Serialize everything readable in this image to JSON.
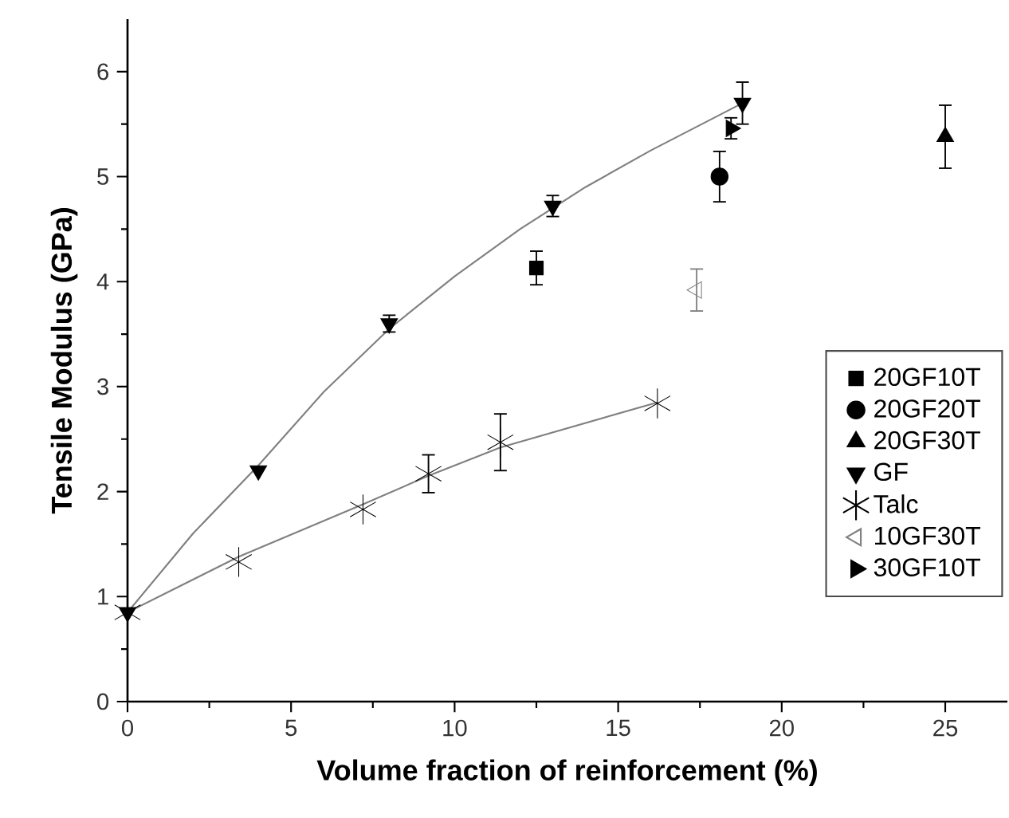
{
  "chart_data": {
    "type": "scatter",
    "xlabel": "Volume fraction of reinforcement (%)",
    "ylabel": "Tensile Modulus  (GPa)",
    "xlim": [
      0,
      26.9
    ],
    "ylim": [
      0,
      6.5
    ],
    "xticks": [
      0,
      5,
      10,
      15,
      20,
      25
    ],
    "yticks": [
      0,
      1,
      2,
      3,
      4,
      5,
      6
    ],
    "grid": false,
    "legend": "right",
    "series": [
      {
        "name": "20GF10T",
        "marker": "square",
        "color": "#000000",
        "x": [
          12.5
        ],
        "values": [
          4.13
        ],
        "errors": [
          0.16
        ]
      },
      {
        "name": "20GF20T",
        "marker": "circle",
        "color": "#000000",
        "x": [
          18.1
        ],
        "values": [
          5.0
        ],
        "errors": [
          0.24
        ]
      },
      {
        "name": "20GF30T",
        "marker": "triangle",
        "color": "#000000",
        "x": [
          25.0
        ],
        "values": [
          5.38
        ],
        "errors": [
          0.3
        ]
      },
      {
        "name": "GF",
        "marker": "triangle-down",
        "color": "#000000",
        "x": [
          0,
          4,
          8,
          13,
          18.8
        ],
        "values": [
          0.85,
          2.2,
          3.6,
          4.72,
          5.7
        ],
        "errors": [
          null,
          null,
          0.08,
          0.1,
          0.2
        ]
      },
      {
        "name": "Talc",
        "marker": "cross",
        "color": "#000000",
        "x": [
          0,
          3.4,
          7.2,
          9.2,
          11.4,
          16.2
        ],
        "values": [
          0.85,
          1.33,
          1.83,
          2.17,
          2.47,
          2.84
        ],
        "errors": [
          null,
          null,
          null,
          0.18,
          0.27,
          null
        ]
      },
      {
        "name": "10GF30T",
        "marker": "triangle-left-open",
        "color": "#808080",
        "x": [
          17.4
        ],
        "values": [
          3.92
        ],
        "errors": [
          0.2
        ]
      },
      {
        "name": "30GF10T",
        "marker": "triangle-right",
        "color": "#000000",
        "x": [
          18.45
        ],
        "values": [
          5.46
        ],
        "errors": [
          0.1
        ]
      },
      {
        "type": "line",
        "color": "#808080",
        "marker": "none",
        "x": [
          0,
          2,
          4,
          6,
          8,
          10,
          12,
          14,
          16,
          18.8
        ],
        "values": [
          0.85,
          1.6,
          2.25,
          2.95,
          3.55,
          4.05,
          4.5,
          4.9,
          5.25,
          5.7
        ]
      },
      {
        "type": "line",
        "color": "#808080",
        "marker": "none",
        "x": [
          0,
          3.4,
          7.2,
          9.2,
          11.4,
          16.2
        ],
        "values": [
          0.85,
          1.38,
          1.88,
          2.15,
          2.42,
          2.85
        ]
      }
    ]
  }
}
